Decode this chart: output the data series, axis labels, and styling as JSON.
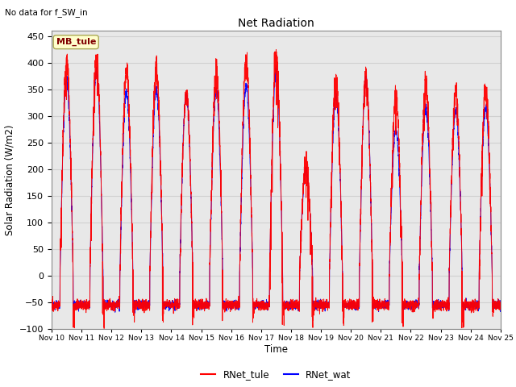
{
  "title": "Net Radiation",
  "suptitle": "No data for f_SW_in",
  "ylabel": "Solar Radiation (W/m2)",
  "xlabel": "Time",
  "ylim": [
    -100,
    460
  ],
  "legend_labels": [
    "RNet_tule",
    "RNet_wat"
  ],
  "legend_colors": [
    "red",
    "blue"
  ],
  "inset_label": "MB_tule",
  "inset_color": "#800000",
  "inset_bg": "#ffffcc",
  "grid_color": "#d0d0d0",
  "background_color": "#e8e8e8",
  "xtick_labels": [
    "Nov 10",
    "Nov 11",
    "Nov 12",
    "Nov 13",
    "Nov 14",
    "Nov 15",
    "Nov 16",
    "Nov 17",
    "Nov 18",
    "Nov 19",
    "Nov 20",
    "Nov 21",
    "Nov 22",
    "Nov 23",
    "Nov 24",
    "Nov 25"
  ],
  "num_days": 15,
  "points_per_day": 288,
  "seed": 12345
}
